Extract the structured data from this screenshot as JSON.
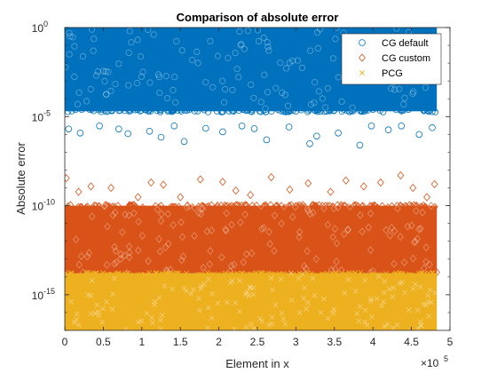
{
  "chart_data": {
    "type": "scatter",
    "title": "Comparison of absolute error",
    "xlabel": "Element in x",
    "ylabel": "Absolute error",
    "x_scale_exponent": "×10",
    "x_scale_power": "5",
    "xlim": [
      0,
      500000
    ],
    "ylim": [
      1e-17,
      1
    ],
    "yscale": "log",
    "xticks": [
      {
        "value": 0,
        "label": "0"
      },
      {
        "value": 50000,
        "label": "0.5"
      },
      {
        "value": 100000,
        "label": "1"
      },
      {
        "value": 150000,
        "label": "1.5"
      },
      {
        "value": 200000,
        "label": "2"
      },
      {
        "value": 250000,
        "label": "2.5"
      },
      {
        "value": 300000,
        "label": "3"
      },
      {
        "value": 350000,
        "label": "3.5"
      },
      {
        "value": 400000,
        "label": "4"
      },
      {
        "value": 450000,
        "label": "4.5"
      },
      {
        "value": 500000,
        "label": "5"
      }
    ],
    "yticks": [
      {
        "value": 1e-15,
        "base": "10",
        "exp": "-15"
      },
      {
        "value": 1e-10,
        "base": "10",
        "exp": "-10"
      },
      {
        "value": 1e-05,
        "base": "10",
        "exp": "-5"
      },
      {
        "value": 1,
        "base": "10",
        "exp": "0"
      }
    ],
    "grid": false,
    "legend_position": "top-right",
    "x_max": 483000,
    "series": [
      {
        "name": "CG default",
        "marker": "circle",
        "color": "#0072BD",
        "band": [
          2e-05,
          1
        ],
        "outliers": [
          {
            "x": 5000,
            "y": 2e-06
          },
          {
            "x": 20000,
            "y": 1.2e-06
          },
          {
            "x": 45000,
            "y": 3e-06
          },
          {
            "x": 70000,
            "y": 2e-06
          },
          {
            "x": 82000,
            "y": 1.1e-06
          },
          {
            "x": 110000,
            "y": 1.5e-06
          },
          {
            "x": 125000,
            "y": 7e-07
          },
          {
            "x": 142000,
            "y": 3e-06
          },
          {
            "x": 155000,
            "y": 4e-07
          },
          {
            "x": 183000,
            "y": 2.2e-06
          },
          {
            "x": 205000,
            "y": 1.4e-06
          },
          {
            "x": 230000,
            "y": 3e-06
          },
          {
            "x": 246000,
            "y": 2.1e-06
          },
          {
            "x": 262000,
            "y": 5e-07
          },
          {
            "x": 291000,
            "y": 2.6e-06
          },
          {
            "x": 318000,
            "y": 3e-07
          },
          {
            "x": 327000,
            "y": 8e-07
          },
          {
            "x": 355000,
            "y": 1.2e-06
          },
          {
            "x": 383000,
            "y": 2.5e-07
          },
          {
            "x": 398000,
            "y": 3e-06
          },
          {
            "x": 420000,
            "y": 1.8e-06
          },
          {
            "x": 437000,
            "y": 3e-06
          },
          {
            "x": 460000,
            "y": 1e-06
          },
          {
            "x": 477000,
            "y": 2.4e-06
          }
        ]
      },
      {
        "name": "CG custom",
        "marker": "diamond",
        "color": "#D95319",
        "band": [
          1.6e-14,
          1e-10
        ],
        "outliers": [
          {
            "x": 2000,
            "y": 3.5e-09
          },
          {
            "x": 18000,
            "y": 6e-10
          },
          {
            "x": 34000,
            "y": 1.2e-09
          },
          {
            "x": 60000,
            "y": 1e-09
          },
          {
            "x": 95000,
            "y": 3e-10
          },
          {
            "x": 112000,
            "y": 2e-09
          },
          {
            "x": 128000,
            "y": 1.5e-09
          },
          {
            "x": 150000,
            "y": 3e-10
          },
          {
            "x": 176000,
            "y": 3e-09
          },
          {
            "x": 205000,
            "y": 2.2e-09
          },
          {
            "x": 222000,
            "y": 7e-10
          },
          {
            "x": 241000,
            "y": 4e-10
          },
          {
            "x": 268000,
            "y": 4e-09
          },
          {
            "x": 292000,
            "y": 8e-10
          },
          {
            "x": 316000,
            "y": 1.8e-09
          },
          {
            "x": 345000,
            "y": 6e-10
          },
          {
            "x": 365000,
            "y": 2.6e-09
          },
          {
            "x": 388000,
            "y": 1.2e-09
          },
          {
            "x": 410000,
            "y": 2e-09
          },
          {
            "x": 436000,
            "y": 5e-09
          },
          {
            "x": 452000,
            "y": 1e-09
          },
          {
            "x": 470000,
            "y": 3e-10
          },
          {
            "x": 480000,
            "y": 1.6e-09
          }
        ]
      },
      {
        "name": "PCG",
        "marker": "x",
        "color": "#EDB120",
        "band": [
          1e-17,
          1.6e-14
        ],
        "outliers": []
      }
    ]
  }
}
